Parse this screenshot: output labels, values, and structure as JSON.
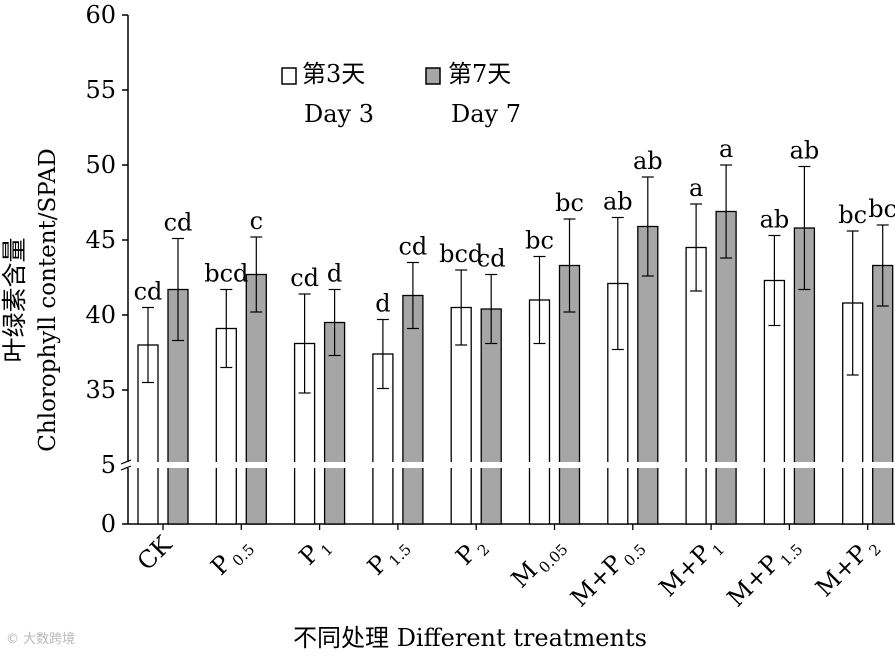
{
  "chart_data": {
    "type": "bar",
    "title": "",
    "xlabel": "不同处理 Different treatments",
    "ylabel_cn": "叶绿素含量",
    "ylabel_en": "Chlorophyll content/SPAD",
    "y_ticks_upper": [
      "60",
      "55",
      "50",
      "45",
      "40",
      "35"
    ],
    "y_ticks_lower": [
      "5",
      "0"
    ],
    "y_tick_values_upper": [
      60,
      55,
      50,
      45,
      40,
      35
    ],
    "y_tick_values_lower": [
      5,
      0
    ],
    "axis_break": {
      "lower_max": 5,
      "upper_min": 30
    },
    "ylim_upper": [
      30,
      60
    ],
    "ylim_lower": [
      0,
      5
    ],
    "categories": [
      {
        "base": "CK",
        "sub": ""
      },
      {
        "base": "P",
        "sub": "0.5"
      },
      {
        "base": "P",
        "sub": "1"
      },
      {
        "base": "P",
        "sub": "1.5"
      },
      {
        "base": "P",
        "sub": "2"
      },
      {
        "base": "M",
        "sub": "0.05"
      },
      {
        "base": "M+P",
        "sub": "0.5"
      },
      {
        "base": "M+P",
        "sub": "1"
      },
      {
        "base": "M+P",
        "sub": "1.5"
      },
      {
        "base": "M+P",
        "sub": "2"
      }
    ],
    "series": [
      {
        "name": "Day 3",
        "legend_cn": "第3天",
        "legend_en": "Day 3",
        "color": "#ffffff",
        "values": [
          38.0,
          39.1,
          38.1,
          37.4,
          40.5,
          41.0,
          42.1,
          44.5,
          42.3,
          40.8
        ],
        "errors": [
          2.5,
          2.6,
          3.3,
          2.3,
          2.5,
          2.9,
          4.4,
          2.9,
          3.0,
          4.8
        ],
        "labels": [
          "cd",
          "bcd",
          "cd",
          "d",
          "bcd",
          "bc",
          "ab",
          "a",
          "ab",
          "bc"
        ]
      },
      {
        "name": "Day 7",
        "legend_cn": "第7天",
        "legend_en": "Day 7",
        "color": "#a6a6a6",
        "values": [
          41.7,
          42.7,
          39.5,
          41.3,
          40.4,
          43.3,
          45.9,
          46.9,
          45.8,
          43.3
        ],
        "errors": [
          3.4,
          2.5,
          2.2,
          2.2,
          2.3,
          3.1,
          3.3,
          3.1,
          4.1,
          2.7
        ],
        "labels": [
          "cd",
          "c",
          "d",
          "cd",
          "cd",
          "bc",
          "ab",
          "a",
          "ab",
          "bc"
        ]
      }
    ],
    "legend_position": "top-left"
  },
  "watermark": "© 大数跨境"
}
